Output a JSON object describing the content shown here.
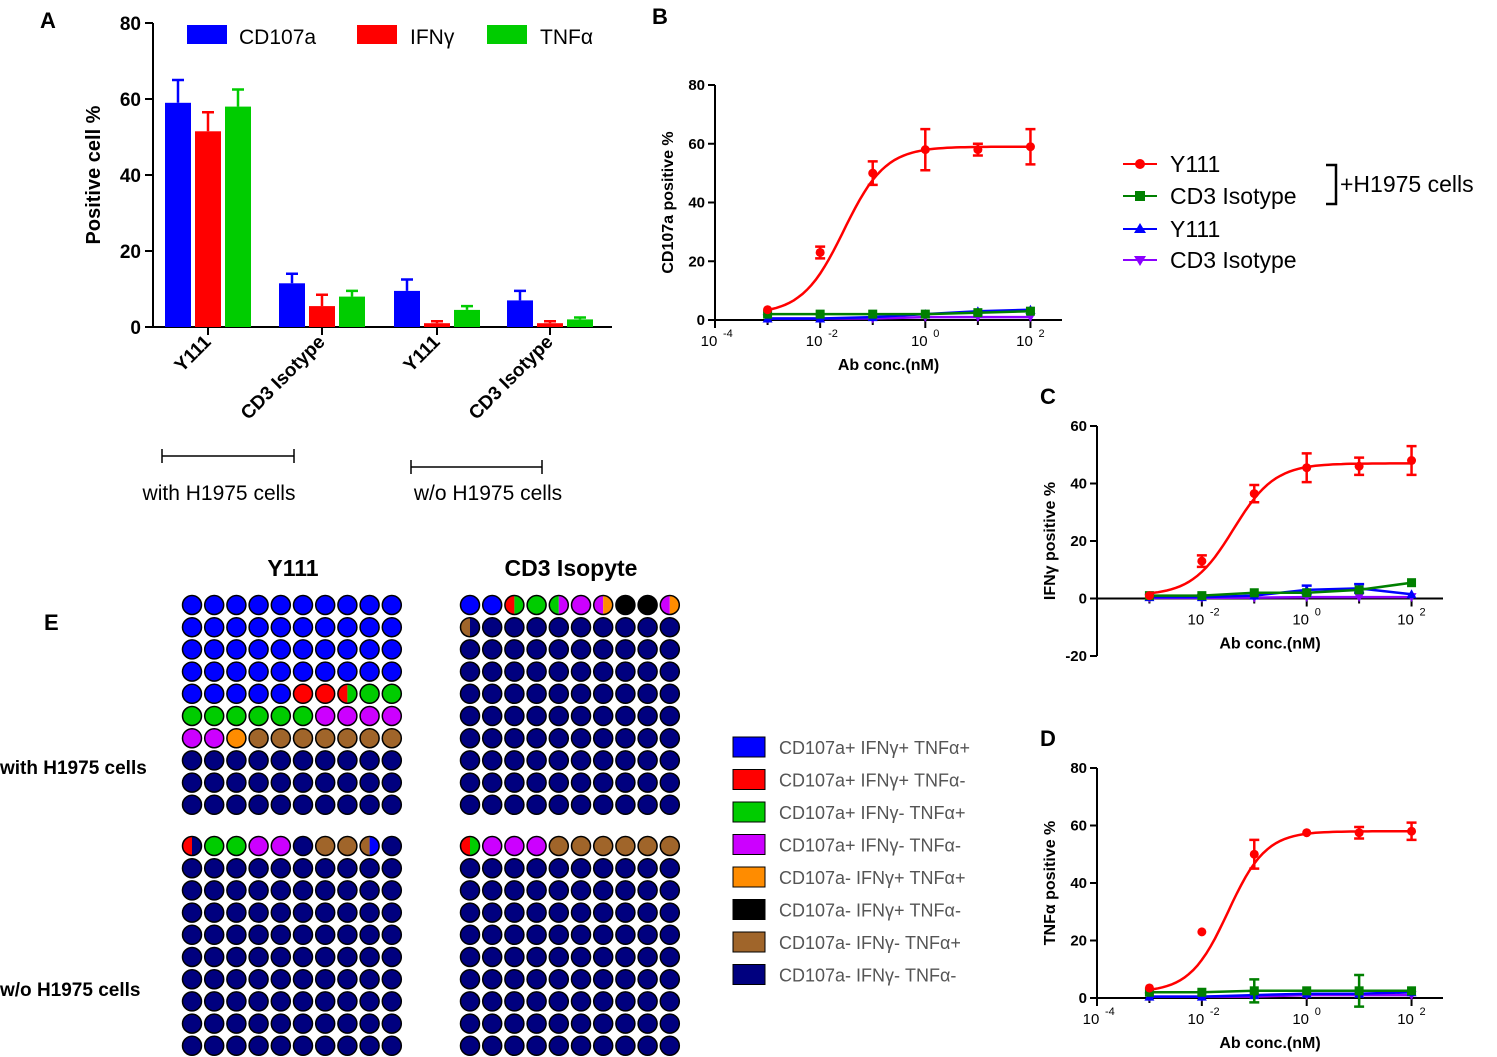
{
  "panel_letters": {
    "a": "A",
    "b": "B",
    "c": "C",
    "d": "D",
    "e": "E"
  },
  "colors": {
    "cd107a": "#0000ff",
    "ifng": "#ff0000",
    "tnfa": "#00cc00",
    "y111_h": "#ff0000",
    "iso_h": "#008000",
    "y111_wo": "#0000ff",
    "iso_wo": "#8b00ff",
    "cells": {
      "b": "#0000ff",
      "r": "#ff0000",
      "g": "#00cc00",
      "p": "#cc00ff",
      "o": "#ff8c00",
      "k": "#000000",
      "w": "#a0652a",
      "n": "#00007f"
    }
  },
  "chart_data": [
    {
      "id": "A",
      "type": "bar",
      "ylabel": "Positive cell %",
      "ylim": [
        0,
        80
      ],
      "yticks": [
        0,
        20,
        40,
        60,
        80
      ],
      "categories": [
        "Y111",
        "CD3 Isotype",
        "Y111",
        "CD3 Isotype"
      ],
      "groups": [
        "with H1975 cells",
        "w/o H1975 cells"
      ],
      "series": [
        {
          "name": "CD107a",
          "values": [
            59,
            11.5,
            9.5,
            7
          ],
          "errors": [
            6,
            2.5,
            3,
            2.5
          ]
        },
        {
          "name": "IFNγ",
          "values": [
            51.5,
            5.5,
            1,
            1
          ],
          "errors": [
            5,
            3,
            0.5,
            0.5
          ]
        },
        {
          "name": "TNFα",
          "values": [
            58,
            8,
            4.5,
            2
          ],
          "errors": [
            4.5,
            1.5,
            1,
            0.5
          ]
        }
      ]
    },
    {
      "id": "B",
      "type": "line",
      "xlabel": "Ab conc.(nM)",
      "ylabel": "CD107a positive %",
      "xscale": "log",
      "xlim_exp": [
        -4,
        2.6
      ],
      "xtick_exponents": [
        -4,
        -2,
        0,
        2
      ],
      "ylim": [
        0,
        80
      ],
      "yticks": [
        0,
        20,
        40,
        60,
        80
      ],
      "x": [
        0.001,
        0.01,
        0.1,
        1,
        10,
        100
      ],
      "series": [
        {
          "name": "Y111 +H1975 cells",
          "values": [
            3.5,
            23,
            50,
            58,
            58,
            59
          ],
          "errors": [
            0,
            2,
            4,
            7,
            2,
            6
          ],
          "fit": {
            "bottom": 2,
            "top": 59,
            "ec50_log": -1.55,
            "hill": 1.1
          }
        },
        {
          "name": "CD3 Isotype +H1975 cells",
          "values": [
            2,
            2,
            2,
            2,
            2.5,
            3
          ],
          "errors": [
            0,
            0,
            0,
            0,
            0,
            0
          ]
        },
        {
          "name": "Y111 w/o",
          "values": [
            0.5,
            0.5,
            1,
            2,
            3,
            3.5
          ],
          "errors": [
            0,
            0,
            0,
            0,
            0,
            0
          ]
        },
        {
          "name": "CD3 Isotype w/o",
          "values": [
            0.5,
            0.5,
            0.5,
            1,
            1,
            1
          ],
          "errors": [
            0,
            0,
            0,
            0,
            0,
            0
          ]
        }
      ]
    },
    {
      "id": "C",
      "type": "line",
      "xlabel": "Ab conc.(nM)",
      "ylabel": "IFNγ positive %",
      "xscale": "log",
      "xlim_exp": [
        -4,
        2.6
      ],
      "xtick_exponents": [
        -2,
        0,
        2
      ],
      "ylim": [
        -20,
        60
      ],
      "yticks": [
        -20,
        0,
        20,
        40,
        60
      ],
      "x": [
        0.001,
        0.01,
        0.1,
        1,
        10,
        100
      ],
      "series": [
        {
          "name": "Y111 +H1975 cells",
          "values": [
            1,
            13,
            36.5,
            45.5,
            46,
            48
          ],
          "errors": [
            0,
            2,
            3,
            5,
            3,
            5
          ],
          "fit": {
            "bottom": 1,
            "top": 47,
            "ec50_log": -1.4,
            "hill": 1.1
          }
        },
        {
          "name": "CD3 Isotype +H1975 cells",
          "values": [
            1,
            1,
            2,
            2,
            3,
            5.5
          ],
          "errors": [
            0,
            0,
            0,
            0,
            0,
            0
          ]
        },
        {
          "name": "Y111 w/o",
          "values": [
            0.5,
            0.5,
            1,
            3,
            3.5,
            1.5
          ],
          "errors": [
            0,
            0,
            0,
            1.5,
            1.5,
            0
          ]
        },
        {
          "name": "CD3 Isotype w/o",
          "values": [
            0.2,
            0.2,
            0.3,
            0.5,
            0.5,
            0.5
          ],
          "errors": [
            0,
            0,
            0,
            0,
            0,
            0
          ]
        }
      ]
    },
    {
      "id": "D",
      "type": "line",
      "xlabel": "Ab conc.(nM)",
      "ylabel": "TNFα positive %",
      "xscale": "log",
      "xlim_exp": [
        -4,
        2.6
      ],
      "xtick_exponents": [
        -4,
        -2,
        0,
        2
      ],
      "ylim": [
        0,
        80
      ],
      "yticks": [
        0,
        20,
        40,
        60,
        80
      ],
      "x": [
        0.001,
        0.01,
        0.1,
        1,
        10,
        100
      ],
      "series": [
        {
          "name": "Y111 +H1975 cells",
          "values": [
            3.5,
            23,
            50,
            57.5,
            57.5,
            58
          ],
          "errors": [
            0,
            0,
            5,
            0,
            2,
            3
          ],
          "fit": {
            "bottom": 2,
            "top": 58,
            "ec50_log": -1.5,
            "hill": 1.2
          }
        },
        {
          "name": "CD3 Isotype +H1975 cells",
          "values": [
            2,
            2,
            2.5,
            2.5,
            2.5,
            2.5
          ],
          "errors": [
            0,
            0,
            4,
            0,
            5.5,
            0
          ]
        },
        {
          "name": "Y111 w/o",
          "values": [
            0.5,
            0.5,
            1,
            1.5,
            1.5,
            2
          ],
          "errors": [
            0,
            0,
            0,
            0,
            0,
            0
          ]
        },
        {
          "name": "CD3 Isotype w/o",
          "values": [
            0.5,
            0.5,
            0.5,
            1,
            1,
            1
          ],
          "errors": [
            0,
            0,
            0,
            0,
            0,
            0
          ]
        }
      ]
    }
  ],
  "panel_a": {
    "legend": [
      "CD107a",
      "IFNγ",
      "TNFα"
    ],
    "group_labels": [
      "with H1975 cells",
      "w/o H1975 cells"
    ]
  },
  "panel_b_legend": {
    "entries": [
      "Y111",
      "CD3 Isotype",
      "Y111",
      "CD3 Isotype"
    ],
    "bracket_label": "+H1975 cells"
  },
  "panel_e": {
    "col_titles": [
      "Y111",
      "CD3 Isopyte"
    ],
    "row_labels": [
      "with H1975 cells",
      "w/o H1975 cells"
    ],
    "legend": [
      {
        "key": "b",
        "label": "CD107a+ IFNγ+ TNFα+"
      },
      {
        "key": "r",
        "label": "CD107a+ IFNγ+ TNFα-"
      },
      {
        "key": "g",
        "label": "CD107a+ IFNγ- TNFα+"
      },
      {
        "key": "p",
        "label": "CD107a+ IFNγ- TNFα-"
      },
      {
        "key": "o",
        "label": "CD107a- IFNγ+ TNFα+"
      },
      {
        "key": "k",
        "label": "CD107a- IFNγ+ TNFα-"
      },
      {
        "key": "w",
        "label": "CD107a- IFNγ- TNFα+"
      },
      {
        "key": "n",
        "label": "CD107a- IFNγ- TNFα-"
      }
    ],
    "grids": [
      {
        "name": "y111-with",
        "rows": [
          "bbbbbbbbbb",
          "bbbbbbbbbb",
          "bbbbbbbbbb",
          "bbbbbbbbbb",
          "bbbbbrrmgg",
          "ggggggpppp",
          "ppowwwwwww",
          "nnnnnnnnnn",
          "nnnnnnnnnn",
          "nnnnnnnnnn"
        ]
      },
      {
        "name": "iso-with",
        "rows": [
          "bbmgqpxkkx",
          "znnnnnnnnn",
          "nnnnnnnnnn",
          "nnnnnnnnnn",
          "nnnnnnnnnn",
          "nnnnnnnnnn",
          "nnnnnnnnnn",
          "nnnnnnnnnn",
          "nnnnnnnnnn",
          "nnnnnnnnnn"
        ]
      },
      {
        "name": "y111-without",
        "rows": [
          "vggppnwwyn",
          "nnnnnnnnnn",
          "nnnnnnnnnn",
          "nnnnnnnnnn",
          "nnnnnnnnnn",
          "nnnnnnnnnn",
          "nnnnnnnnnn",
          "nnnnnnnnnn",
          "nnnnnnnnnn",
          "nnnnnnnnnn"
        ]
      },
      {
        "name": "iso-without",
        "rows": [
          "upppwwwwww",
          "nnnnnnnnnn",
          "nnnnnnnnnn",
          "nnnnnnnnnn",
          "nnnnnnnnnn",
          "nnnnnnnnnn",
          "nnnnnnnnnn",
          "nnnnnnnnnn",
          "nnnnnnnnnn",
          "nnnnnnnnnn"
        ]
      }
    ],
    "split_cells": {
      "m": [
        "r",
        "g"
      ],
      "q": [
        "g",
        "p"
      ],
      "x": [
        "p",
        "o"
      ],
      "z": [
        "w",
        "n"
      ],
      "v": [
        "r",
        "n"
      ],
      "y": [
        "w",
        "b"
      ],
      "u": [
        "r",
        "g"
      ]
    }
  }
}
